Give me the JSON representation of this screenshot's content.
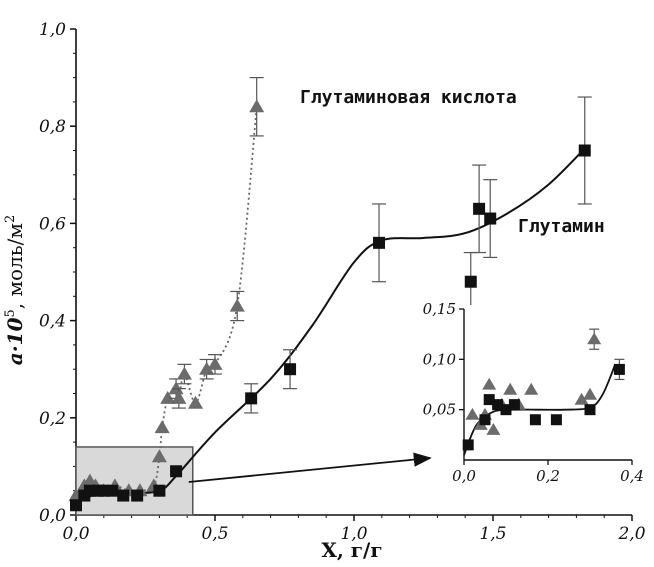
{
  "chart_data": {
    "type": "scatter",
    "main": {
      "xlabel": "X, г/г",
      "ylabel": "a·10^5, моль/м²",
      "ylabel_parts": {
        "base": "a·10",
        "exp": "5",
        "unit": ", моль/м",
        "unit_exp": "2"
      },
      "xlim": [
        0.0,
        2.0
      ],
      "ylim": [
        0.0,
        1.0
      ],
      "xticks": [
        "0,0",
        "0,5",
        "1,0",
        "1,5",
        "2,0"
      ],
      "yticks": [
        "0,0",
        "0,2",
        "0,4",
        "0,6",
        "0,8",
        "1,0"
      ],
      "series": [
        {
          "name": "Глутаминовая кислота",
          "marker": "triangle",
          "color": "#6b6b6b",
          "line": "dotted",
          "x": [
            0.0,
            0.02,
            0.03,
            0.05,
            0.07,
            0.1,
            0.14,
            0.19,
            0.23,
            0.28,
            0.3,
            0.31,
            0.33,
            0.36,
            0.37,
            0.39,
            0.43,
            0.47,
            0.5,
            0.58,
            0.65
          ],
          "y": [
            0.04,
            0.05,
            0.06,
            0.07,
            0.06,
            0.05,
            0.06,
            0.05,
            0.05,
            0.06,
            0.12,
            0.18,
            0.24,
            0.26,
            0.24,
            0.29,
            0.23,
            0.3,
            0.31,
            0.43,
            0.84
          ],
          "error": [
            0,
            0,
            0,
            0,
            0,
            0,
            0,
            0,
            0,
            0,
            0,
            0,
            0,
            0.02,
            0.02,
            0.02,
            0,
            0.02,
            0.02,
            0.03,
            0.06
          ]
        },
        {
          "name": "Глутамин",
          "marker": "square",
          "color": "#111111",
          "line": "solid",
          "x": [
            0.0,
            0.03,
            0.05,
            0.08,
            0.1,
            0.13,
            0.17,
            0.22,
            0.3,
            0.36,
            0.63,
            0.77,
            1.09,
            1.42,
            1.45,
            1.49,
            1.83
          ],
          "y": [
            0.02,
            0.04,
            0.05,
            0.05,
            0.05,
            0.05,
            0.04,
            0.04,
            0.05,
            0.09,
            0.24,
            0.3,
            0.56,
            0.48,
            0.63,
            0.61,
            0.75
          ],
          "error": [
            0,
            0,
            0,
            0,
            0,
            0,
            0,
            0,
            0,
            0,
            0.03,
            0.04,
            0.08,
            0.06,
            0.09,
            0.08,
            0.11
          ]
        }
      ],
      "zoom_box": {
        "x": [
          0.0,
          0.42
        ],
        "y": [
          0.0,
          0.14
        ]
      }
    },
    "inset": {
      "xlim": [
        0.0,
        0.4
      ],
      "ylim": [
        0.0,
        0.15
      ],
      "xticks": [
        "0,0",
        "0,2",
        "0,4"
      ],
      "yticks": [
        "0,05",
        "0,10",
        "0,15"
      ],
      "series": [
        {
          "name": "Глутаминовая кислота",
          "marker": "triangle",
          "x": [
            0.02,
            0.04,
            0.05,
            0.06,
            0.07,
            0.09,
            0.11,
            0.13,
            0.16,
            0.28,
            0.3,
            0.31
          ],
          "y": [
            0.045,
            0.035,
            0.045,
            0.075,
            0.03,
            0.055,
            0.07,
            0.055,
            0.07,
            0.06,
            0.065,
            0.12
          ],
          "error": [
            0,
            0,
            0,
            0,
            0,
            0,
            0,
            0,
            0,
            0,
            0,
            0.01
          ]
        },
        {
          "name": "Глутамин",
          "marker": "square",
          "x": [
            0.01,
            0.05,
            0.06,
            0.08,
            0.1,
            0.12,
            0.17,
            0.22,
            0.3,
            0.37
          ],
          "y": [
            0.015,
            0.04,
            0.06,
            0.055,
            0.05,
            0.055,
            0.04,
            0.04,
            0.05,
            0.09
          ],
          "error": [
            0,
            0,
            0,
            0,
            0,
            0,
            0,
            0,
            0,
            0.01
          ]
        }
      ]
    }
  }
}
